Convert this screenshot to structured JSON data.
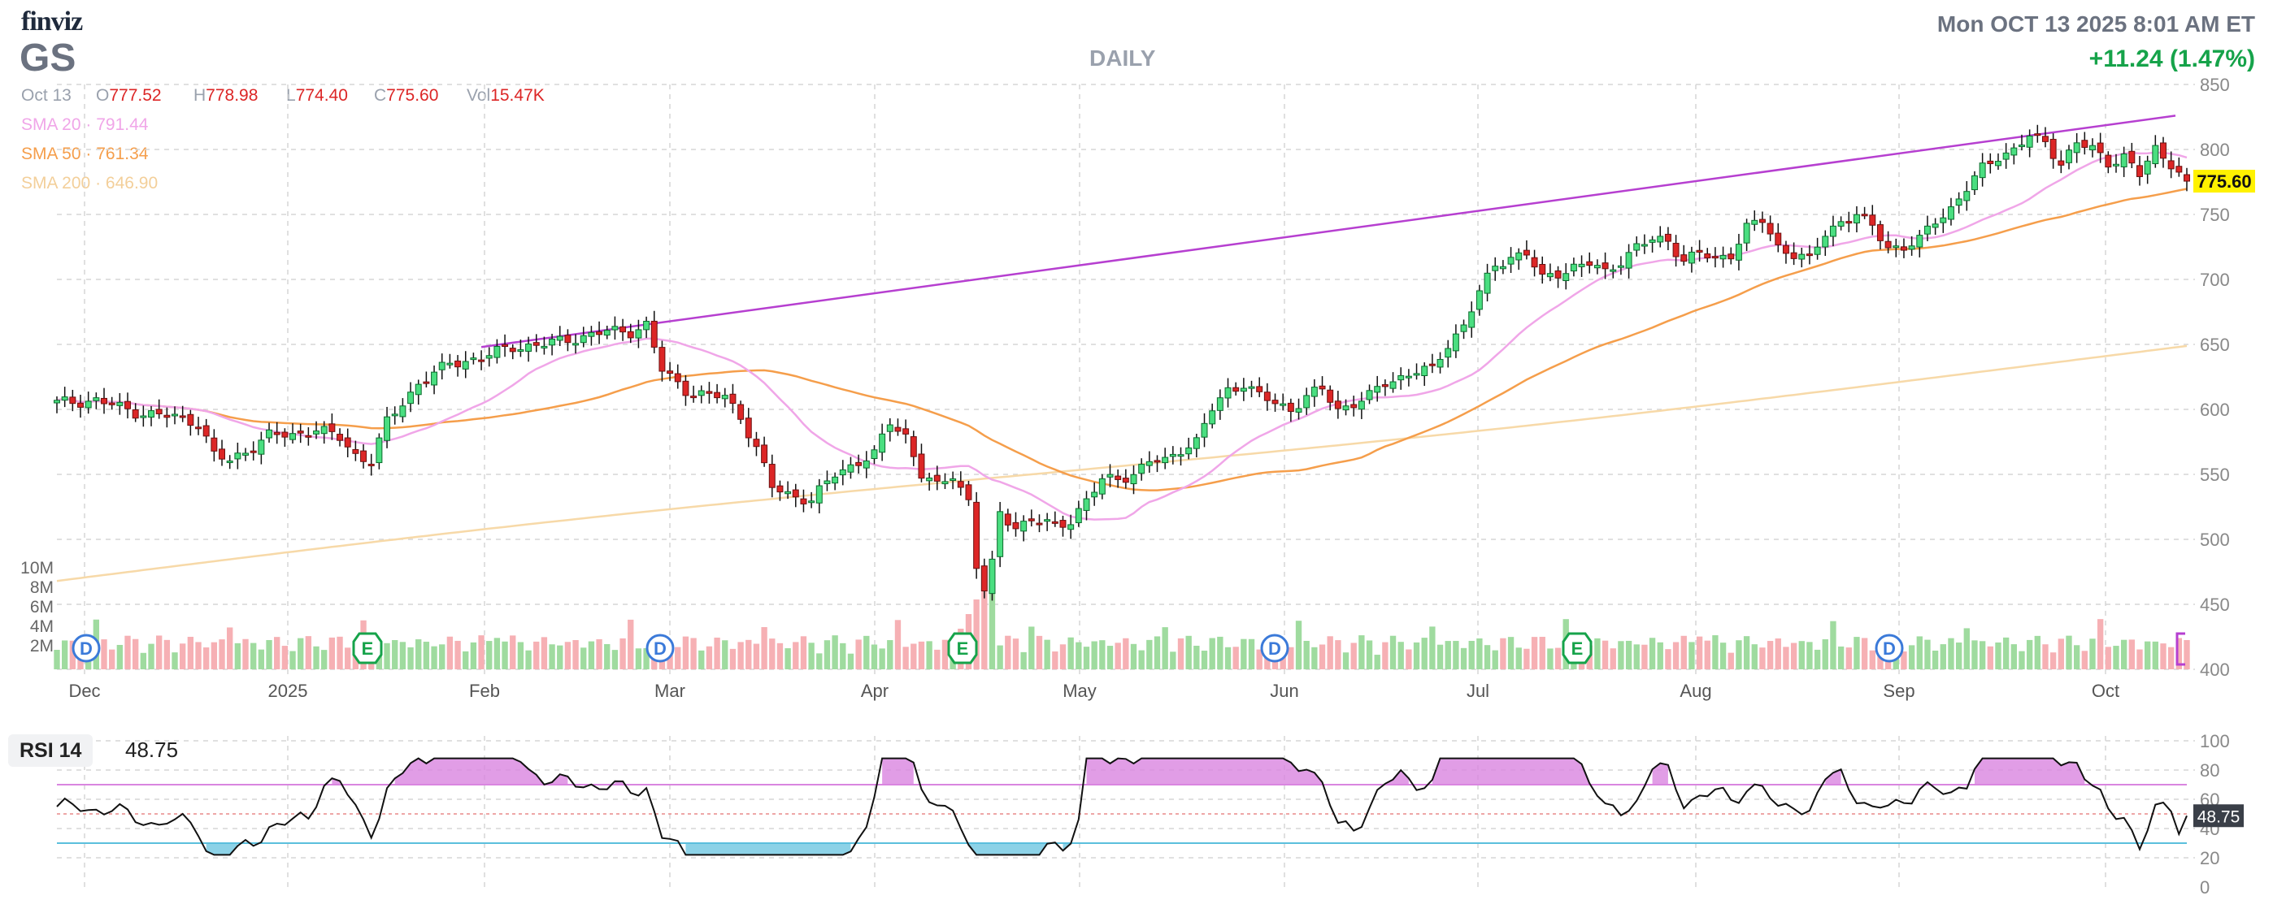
{
  "header": {
    "logo": "finviz",
    "ticker": "GS",
    "period": "DAILY",
    "datetime": "Mon OCT 13 2025 8:01 AM ET",
    "change": "+11.24 (1.47%)"
  },
  "ohlc": {
    "date": "Oct 13",
    "open_label": "O",
    "open": "777.52",
    "high_label": "H",
    "high": "778.98",
    "low_label": "L",
    "low": "774.40",
    "close_label": "C",
    "close": "775.60",
    "vol_label": "Vol",
    "vol": "15.47K"
  },
  "sma": {
    "sma20_label": "SMA 20",
    "sma20_value": "791.44",
    "sma50_label": "SMA 50",
    "sma50_value": "761.34",
    "sma200_label": "SMA 200",
    "sma200_value": "646.90",
    "sep": "·"
  },
  "colors": {
    "up": "#16a34a",
    "up_fill": "#4ade80",
    "down": "#b91c1c",
    "down_fill": "#dc2626",
    "sma20": "#f0a6e8",
    "sma50": "#f59e4b",
    "sma200": "#f7d9a8",
    "trendline": "#b63fd0",
    "vol_up": "#9fdb9f",
    "vol_down": "#f6b0b4",
    "rsi": "#111111",
    "rsi_over": "#d985e0",
    "rsi_under": "#5bbfdd",
    "price_tag": "#fff200"
  },
  "rsi": {
    "label": "RSI 14",
    "value": "48.75"
  },
  "chart_data": [
    {
      "type": "candlestick",
      "title": "",
      "x_labels": [
        "Dec",
        "2025",
        "Feb",
        "Mar",
        "Apr",
        "May",
        "Jun",
        "Jul",
        "Aug",
        "Sep",
        "Oct"
      ],
      "y_ticks": [
        "850",
        "800",
        "750",
        "700",
        "650",
        "600",
        "550",
        "500",
        "450",
        "400"
      ],
      "ylim": [
        400,
        850
      ],
      "last_price": "775.60",
      "price_anchors": [
        [
          0,
          605
        ],
        [
          5,
          607
        ],
        [
          10,
          598
        ],
        [
          15,
          594
        ],
        [
          18,
          590
        ],
        [
          20,
          565
        ],
        [
          22,
          560
        ],
        [
          24,
          568
        ],
        [
          27,
          580
        ],
        [
          30,
          580
        ],
        [
          33,
          585
        ],
        [
          36,
          578
        ],
        [
          38,
          565
        ],
        [
          40,
          560
        ],
        [
          42,
          590
        ],
        [
          46,
          620
        ],
        [
          50,
          635
        ],
        [
          54,
          640
        ],
        [
          58,
          648
        ],
        [
          62,
          650
        ],
        [
          66,
          655
        ],
        [
          70,
          660
        ],
        [
          73,
          660
        ],
        [
          75,
          665
        ],
        [
          77,
          630
        ],
        [
          80,
          615
        ],
        [
          83,
          610
        ],
        [
          85,
          610
        ],
        [
          87,
          595
        ],
        [
          89,
          570
        ],
        [
          91,
          540
        ],
        [
          93,
          535
        ],
        [
          96,
          530
        ],
        [
          99,
          550
        ],
        [
          102,
          560
        ],
        [
          104,
          565
        ],
        [
          106,
          590
        ],
        [
          108,
          580
        ],
        [
          110,
          550
        ],
        [
          112,
          540
        ],
        [
          114,
          550
        ],
        [
          116,
          530
        ],
        [
          117,
          480
        ],
        [
          118,
          460
        ],
        [
          119,
          480
        ],
        [
          120,
          520
        ],
        [
          122,
          510
        ],
        [
          124,
          515
        ],
        [
          127,
          510
        ],
        [
          129,
          515
        ],
        [
          131,
          530
        ],
        [
          133,
          545
        ],
        [
          137,
          550
        ],
        [
          139,
          560
        ],
        [
          141,
          560
        ],
        [
          143,
          570
        ],
        [
          145,
          575
        ],
        [
          147,
          600
        ],
        [
          149,
          615
        ],
        [
          151,
          620
        ],
        [
          153,
          610
        ],
        [
          155,
          605
        ],
        [
          157,
          600
        ],
        [
          159,
          610
        ],
        [
          161,
          615
        ],
        [
          163,
          600
        ],
        [
          165,
          605
        ],
        [
          167,
          610
        ],
        [
          169,
          620
        ],
        [
          171,
          625
        ],
        [
          173,
          630
        ],
        [
          175,
          630
        ],
        [
          177,
          650
        ],
        [
          179,
          665
        ],
        [
          181,
          690
        ],
        [
          183,
          710
        ],
        [
          185,
          718
        ],
        [
          187,
          720
        ],
        [
          189,
          700
        ],
        [
          191,
          705
        ],
        [
          193,
          710
        ],
        [
          195,
          712
        ],
        [
          197,
          705
        ],
        [
          199,
          715
        ],
        [
          201,
          725
        ],
        [
          203,
          730
        ],
        [
          205,
          730
        ],
        [
          207,
          715
        ],
        [
          209,
          720
        ],
        [
          211,
          715
        ],
        [
          213,
          720
        ],
        [
          215,
          740
        ],
        [
          217,
          745
        ],
        [
          219,
          725
        ],
        [
          221,
          720
        ],
        [
          223,
          715
        ],
        [
          225,
          735
        ],
        [
          227,
          745
        ],
        [
          229,
          750
        ],
        [
          231,
          740
        ],
        [
          233,
          725
        ],
        [
          235,
          725
        ],
        [
          237,
          730
        ],
        [
          239,
          745
        ],
        [
          241,
          755
        ],
        [
          243,
          770
        ],
        [
          245,
          785
        ],
        [
          247,
          795
        ],
        [
          249,
          800
        ],
        [
          251,
          810
        ],
        [
          253,
          805
        ],
        [
          255,
          790
        ],
        [
          257,
          805
        ],
        [
          259,
          800
        ],
        [
          261,
          790
        ],
        [
          263,
          795
        ],
        [
          265,
          780
        ],
        [
          267,
          800
        ],
        [
          269,
          790
        ],
        [
          271,
          775
        ]
      ],
      "earnings_markers": [
        "E",
        "E",
        "E"
      ],
      "dividend_markers": [
        "D",
        "D",
        "D",
        "D",
        "D"
      ],
      "volume_ticks": [
        "10M",
        "8M",
        "6M",
        "4M",
        "2M"
      ]
    },
    {
      "type": "line",
      "title": "RSI 14",
      "y_ticks": [
        "100",
        "80",
        "60",
        "40",
        "20",
        "0"
      ],
      "ylim": [
        0,
        100
      ],
      "overbought": 70,
      "oversold": 30,
      "last_value": "48.75"
    }
  ]
}
